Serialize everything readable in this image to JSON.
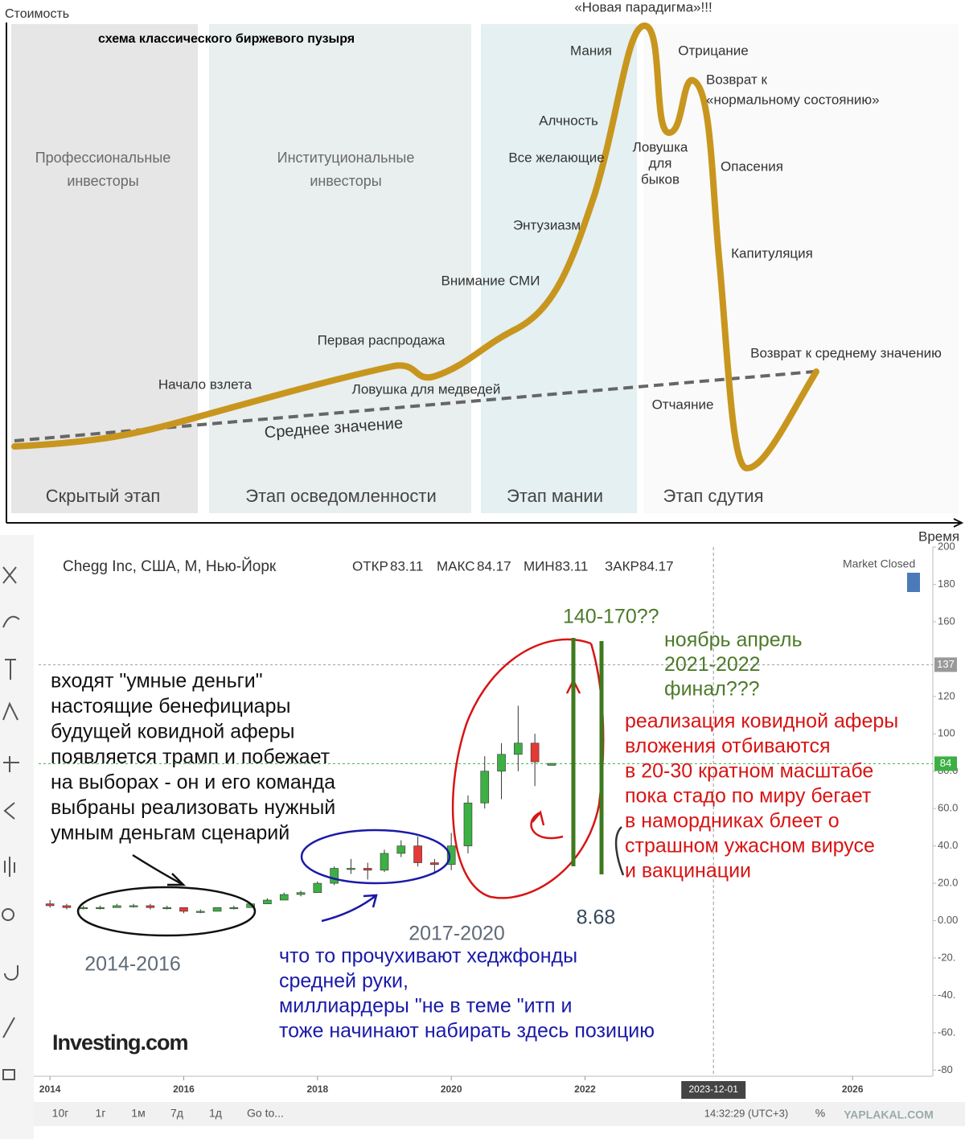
{
  "diagram": {
    "y_axis": "Стоимость",
    "x_axis": "Время",
    "title": "схема классического биржевого пузыря",
    "zones": [
      [
        "Профессиональные",
        "инвесторы"
      ],
      [
        "Институциональные",
        "инвесторы"
      ]
    ],
    "stages": [
      "Скрытый этап",
      "Этап осведомленности",
      "Этап мании",
      "Этап сдутия"
    ],
    "labels": [
      "«Новая парадигма»!!!",
      "Мания",
      "Отрицание",
      "Возврат к",
      "«нормальному состоянию»",
      "Алчность",
      "Ловушка",
      "для",
      "быков",
      "Все желающие",
      "Опасения",
      "Энтузиазм",
      "Капитуляция",
      "Внимание СМИ",
      "Первая распродажа",
      "Возврат к среднему значению",
      "Начало взлета",
      "Ловушка для медведей",
      "Отчаяние"
    ],
    "mean_label": "Среднее значение"
  },
  "chart_data": {
    "type": "candlestick",
    "title": "Chegg Inc, США, М, Нью-Йорк",
    "stats": {
      "open_label": "ОТКР",
      "open": 83.11,
      "high_label": "МАКС",
      "high": 84.17,
      "low_label": "МИН",
      "low": 83.11,
      "close_label": "ЗАКР",
      "close": 84.17
    },
    "status": "Market Closed",
    "x": [
      2014.0,
      2014.25,
      2014.5,
      2014.75,
      2015.0,
      2015.25,
      2015.5,
      2015.75,
      2016.0,
      2016.25,
      2016.5,
      2016.75,
      2017.0,
      2017.25,
      2017.5,
      2017.75,
      2018.0,
      2018.25,
      2018.5,
      2018.75,
      2019.0,
      2019.25,
      2019.5,
      2019.75,
      2020.0,
      2020.25,
      2020.5,
      2020.75,
      2021.0,
      2021.25,
      2021.5
    ],
    "open": [
      9,
      8,
      7,
      7,
      7,
      8,
      8,
      7,
      7,
      5,
      5,
      7,
      7,
      9,
      11,
      14,
      15,
      20,
      28,
      28,
      27,
      36,
      40,
      31,
      30,
      40,
      63,
      80,
      89,
      95,
      83.11
    ],
    "high": [
      11,
      9,
      8,
      8,
      9,
      9,
      9,
      8,
      7,
      6,
      7,
      8,
      9,
      12,
      15,
      16,
      21,
      29,
      33,
      31,
      38,
      43,
      45,
      33,
      47,
      67,
      88,
      95,
      115,
      100,
      84.17
    ],
    "low": [
      7,
      6,
      6,
      6,
      7,
      7,
      6,
      6,
      4,
      4,
      5,
      6,
      7,
      9,
      11,
      13,
      15,
      19,
      25,
      22,
      26,
      34,
      29,
      25,
      27,
      36,
      60,
      65,
      80,
      72,
      83.11
    ],
    "close": [
      8,
      7,
      7,
      7,
      8,
      8,
      7,
      7,
      5,
      5,
      7,
      7,
      9,
      11,
      14,
      15,
      20,
      28,
      28,
      27,
      36,
      40,
      31,
      30,
      40,
      63,
      80,
      89,
      95,
      85,
      84.17
    ],
    "up_color": "#3cb043",
    "down_color": "#e53935",
    "xlim": [
      2013.83,
      2027.2
    ],
    "xticks": [
      2014,
      2016,
      2018,
      2020,
      2022,
      2026
    ],
    "crosshair_x": {
      "value": 2023.92,
      "label": "2023-12-01"
    },
    "ylim": [
      -82,
      200
    ],
    "yticks": [
      200,
      180,
      160,
      120,
      100,
      {
        "value": 80,
        "label": "80.0"
      },
      {
        "value": 60,
        "label": "60.0"
      },
      {
        "value": 40,
        "label": "40.0"
      },
      {
        "value": 20,
        "label": "20.0"
      },
      {
        "value": 0,
        "label": "0.00"
      },
      {
        "value": -20,
        "label": "-20."
      },
      {
        "value": -40,
        "label": "-40."
      },
      {
        "value": -60,
        "label": "-60."
      },
      {
        "value": -80,
        "label": "-80"
      }
    ],
    "price_lines": [
      {
        "value": 137,
        "color": "#999"
      },
      {
        "value": 84,
        "color": "#3cb043"
      }
    ]
  },
  "annotations": {
    "black": [
      "входят \"умные деньги\"",
      "настоящие бенефициары",
      "будущей ковидной аферы",
      "появляется трамп и побежает",
      "на выборах - он и его команда",
      "выбраны реализовать нужный",
      "умным деньгам сценарий"
    ],
    "period_1": "2014-2016",
    "period_2": "2017-2020",
    "blue": [
      "что то прочухивают хеджфонды",
      "средней руки,",
      "миллиардеры \"не в теме \"итп и",
      " тоже начинают набирать здесь позицию"
    ],
    "target": "140-170??",
    "green": [
      "ноябрь апрель",
      " 2021-2022",
      "финал???"
    ],
    "red": [
      "реализация ковидной аферы",
      "вложения отбиваются",
      " в 20-30 кратном масштабе",
      "пока стадо по миру бегает",
      "в намордниках блеет о",
      "страшном ужасном вирусе",
      " и вакцинации"
    ],
    "low_point": "8.68"
  },
  "ui": {
    "logo": "Investing.com",
    "periods": [
      "10г",
      "1г",
      "1м",
      "7д",
      "1д",
      "Go to..."
    ],
    "time": "14:32:29 (UTC+3)",
    "percent": "%",
    "watermark": "YAPLAKAL.COM"
  }
}
